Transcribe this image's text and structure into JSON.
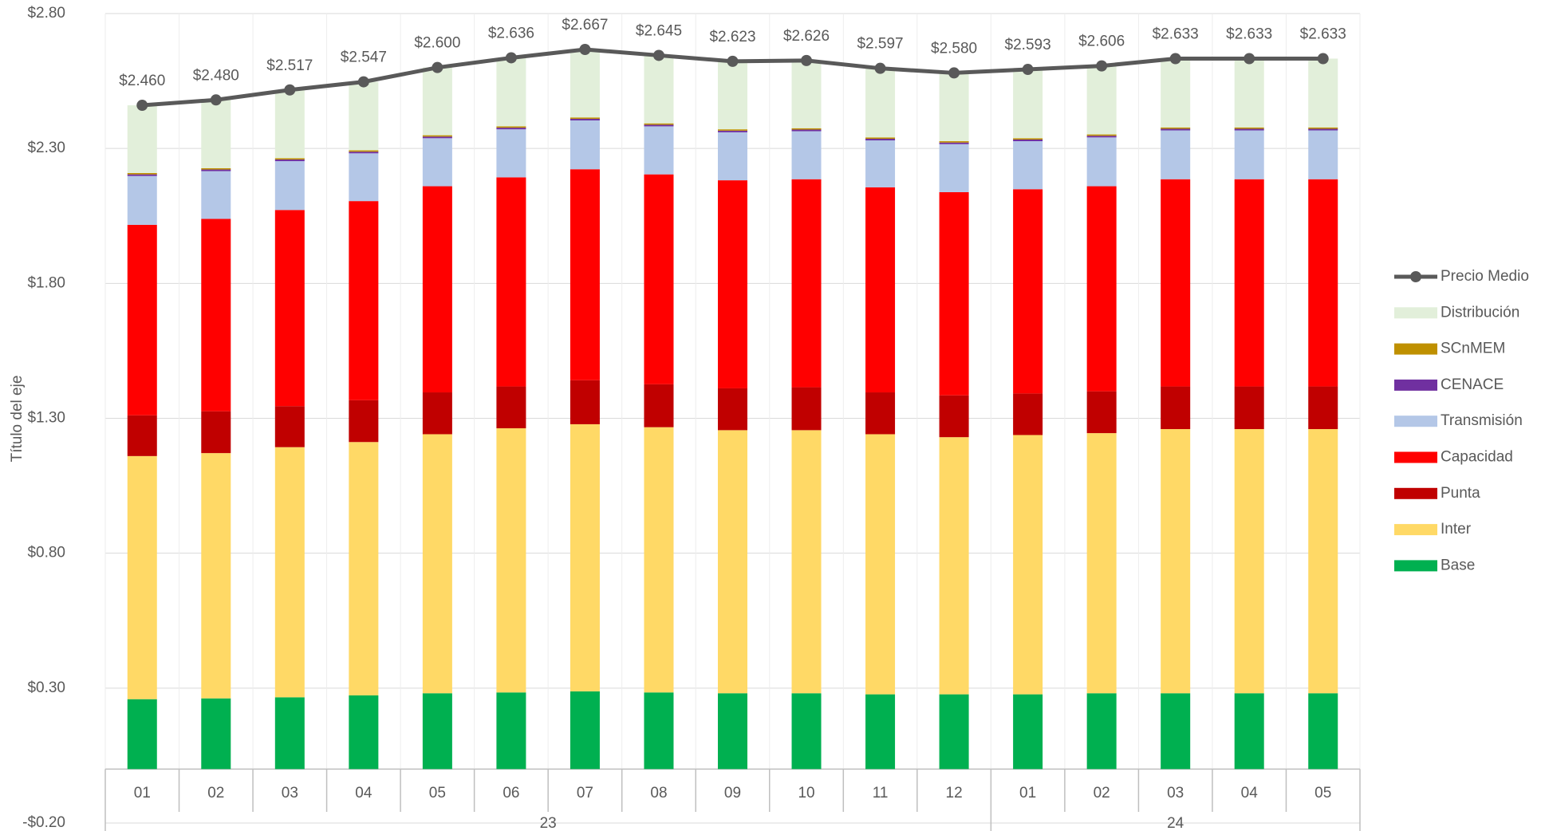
{
  "chart_data": {
    "type": "bar",
    "stacked": true,
    "y_axis_label": "Título del eje",
    "category_groups": [
      {
        "name": "23",
        "categories": [
          "01",
          "02",
          "03",
          "04",
          "05",
          "06",
          "07",
          "08",
          "09",
          "10",
          "11",
          "12"
        ]
      },
      {
        "name": "24",
        "categories": [
          "01",
          "02",
          "03",
          "04",
          "05"
        ]
      }
    ],
    "ylim": [
      -0.2,
      2.8
    ],
    "yticks": [
      {
        "value": -0.2,
        "label": "-$0.20"
      },
      {
        "value": 0.3,
        "label": "$0.30"
      },
      {
        "value": 0.8,
        "label": "$0.80"
      },
      {
        "value": 1.3,
        "label": "$1.30"
      },
      {
        "value": 1.8,
        "label": "$1.80"
      },
      {
        "value": 2.3,
        "label": "$2.30"
      },
      {
        "value": 2.8,
        "label": "$2.80"
      }
    ],
    "grid": true,
    "legend": "right",
    "series": [
      {
        "name": "Base",
        "color": "#00b050",
        "values": [
          0.259,
          0.262,
          0.266,
          0.273,
          0.281,
          0.284,
          0.288,
          0.284,
          0.281,
          0.281,
          0.277,
          0.277,
          0.277,
          0.281,
          0.281,
          0.281,
          0.281
        ]
      },
      {
        "name": "Inter",
        "color": "#ffd966",
        "values": [
          0.901,
          0.909,
          0.927,
          0.939,
          0.96,
          0.979,
          0.99,
          0.983,
          0.975,
          0.975,
          0.964,
          0.953,
          0.961,
          0.964,
          0.979,
          0.979,
          0.979
        ]
      },
      {
        "name": "Punta",
        "color": "#c00000",
        "values": [
          0.151,
          0.155,
          0.152,
          0.155,
          0.155,
          0.155,
          0.163,
          0.159,
          0.155,
          0.159,
          0.155,
          0.155,
          0.154,
          0.155,
          0.158,
          0.158,
          0.158
        ]
      },
      {
        "name": "Capacidad",
        "color": "#ff0000",
        "values": [
          0.706,
          0.713,
          0.727,
          0.738,
          0.764,
          0.775,
          0.782,
          0.778,
          0.771,
          0.771,
          0.76,
          0.753,
          0.757,
          0.76,
          0.768,
          0.768,
          0.768
        ]
      },
      {
        "name": "Transmisión",
        "color": "#b4c7e7",
        "values": [
          0.181,
          0.177,
          0.181,
          0.177,
          0.178,
          0.178,
          0.181,
          0.178,
          0.178,
          0.178,
          0.174,
          0.178,
          0.178,
          0.181,
          0.181,
          0.181,
          0.181
        ]
      },
      {
        "name": "CENACE",
        "color": "#7030a0",
        "values": [
          0.006,
          0.006,
          0.006,
          0.006,
          0.006,
          0.006,
          0.006,
          0.006,
          0.006,
          0.006,
          0.006,
          0.006,
          0.006,
          0.006,
          0.006,
          0.006,
          0.006
        ]
      },
      {
        "name": "SCnMEM",
        "color": "#bf9000",
        "values": [
          0.005,
          0.005,
          0.005,
          0.005,
          0.005,
          0.005,
          0.005,
          0.005,
          0.005,
          0.005,
          0.005,
          0.005,
          0.005,
          0.005,
          0.005,
          0.005,
          0.005
        ]
      },
      {
        "name": "Distribución",
        "color": "#e2efda",
        "values": [
          0.251,
          0.253,
          0.253,
          0.254,
          0.251,
          0.254,
          0.252,
          0.252,
          0.252,
          0.251,
          0.256,
          0.253,
          0.255,
          0.254,
          0.255,
          0.255,
          0.255
        ]
      },
      {
        "name": "Precio Medio",
        "type": "line",
        "color": "#595959",
        "values": [
          2.46,
          2.48,
          2.517,
          2.547,
          2.6,
          2.636,
          2.667,
          2.645,
          2.623,
          2.626,
          2.597,
          2.58,
          2.593,
          2.606,
          2.633,
          2.633,
          2.633
        ],
        "value_labels": [
          "$2.460",
          "$2.480",
          "$2.517",
          "$2.547",
          "$2.600",
          "$2.636",
          "$2.667",
          "$2.645",
          "$2.623",
          "$2.626",
          "$2.597",
          "$2.580",
          "$2.593",
          "$2.606",
          "$2.633",
          "$2.633",
          "$2.633"
        ]
      }
    ]
  }
}
